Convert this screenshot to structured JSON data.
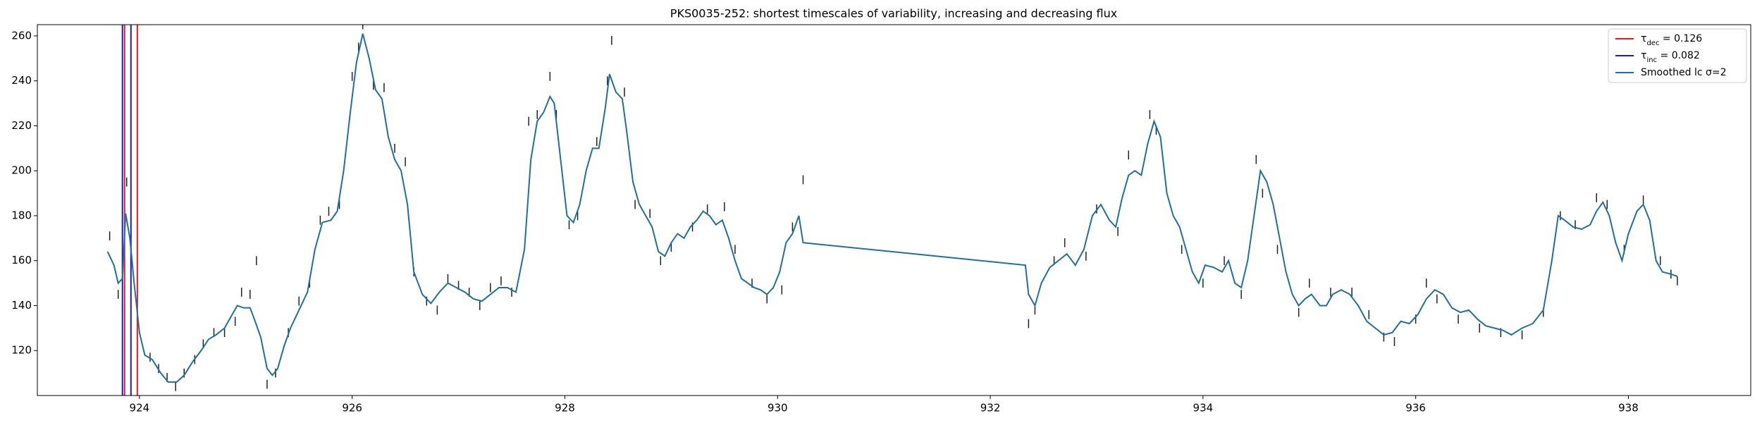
{
  "chart_data": {
    "type": "line",
    "title": "PKS0035-252: shortest timescales of variability, increasing and decreasing flux",
    "xlim": [
      923.04,
      939.15
    ],
    "ylim": [
      100,
      265
    ],
    "xticks": [
      924,
      926,
      928,
      930,
      932,
      934,
      936,
      938
    ],
    "yticks": [
      120,
      140,
      160,
      180,
      200,
      220,
      240,
      260
    ],
    "legend": "upper right",
    "series": [
      {
        "kind": "vline",
        "name_parts": [
          "τ",
          "dec",
          " = 0.126"
        ],
        "color": "#e41a1c",
        "x": [
          923.86,
          923.98
        ]
      },
      {
        "kind": "vline",
        "name_parts": [
          "τ",
          "inc",
          " = 0.082"
        ],
        "color": "#1a1adb",
        "x": [
          923.84,
          923.92
        ]
      },
      {
        "kind": "line",
        "name": "Smoothed lc σ=2",
        "color": "#1f6fa3",
        "x": [
          923.7,
          923.76,
          923.8,
          923.84,
          923.87,
          923.91,
          923.95,
          924.0,
          924.05,
          924.12,
          924.2,
          924.27,
          924.35,
          924.42,
          924.5,
          924.58,
          924.65,
          924.72,
          924.8,
          924.86,
          924.92,
          924.98,
          925.04,
          925.08,
          925.14,
          925.2,
          925.25,
          925.3,
          925.36,
          925.42,
          925.5,
          925.58,
          925.65,
          925.72,
          925.8,
          925.86,
          925.92,
          925.98,
          926.04,
          926.1,
          926.16,
          926.22,
          926.28,
          926.34,
          926.4,
          926.46,
          926.52,
          926.58,
          926.66,
          926.74,
          926.82,
          926.9,
          926.98,
          927.06,
          927.14,
          927.22,
          927.3,
          927.38,
          927.46,
          927.54,
          927.62,
          927.68,
          927.74,
          927.8,
          927.86,
          927.9,
          927.96,
          928.02,
          928.08,
          928.14,
          928.2,
          928.26,
          928.32,
          928.38,
          928.42,
          928.48,
          928.54,
          928.58,
          928.64,
          928.7,
          928.76,
          928.82,
          928.88,
          928.94,
          929.0,
          929.06,
          929.12,
          929.18,
          929.24,
          929.3,
          929.36,
          929.42,
          929.48,
          929.54,
          929.6,
          929.66,
          929.72,
          929.78,
          929.84,
          929.9,
          929.96,
          930.02,
          930.08,
          930.14,
          930.2,
          930.24,
          932.33,
          932.36,
          932.42,
          932.48,
          932.56,
          932.64,
          932.72,
          932.8,
          932.88,
          932.96,
          933.04,
          933.12,
          933.18,
          933.24,
          933.3,
          933.36,
          933.42,
          933.48,
          933.54,
          933.6,
          933.66,
          933.72,
          933.78,
          933.84,
          933.9,
          933.96,
          934.02,
          934.1,
          934.18,
          934.24,
          934.3,
          934.36,
          934.42,
          934.48,
          934.54,
          934.6,
          934.66,
          934.72,
          934.78,
          934.84,
          934.9,
          934.96,
          935.02,
          935.1,
          935.16,
          935.22,
          935.3,
          935.38,
          935.46,
          935.54,
          935.62,
          935.7,
          935.78,
          935.86,
          935.94,
          936.02,
          936.1,
          936.18,
          936.26,
          936.34,
          936.42,
          936.5,
          936.58,
          936.66,
          936.74,
          936.82,
          936.9,
          937.0,
          937.1,
          937.2,
          937.28,
          937.34,
          937.4,
          937.48,
          937.56,
          937.64,
          937.7,
          937.76,
          937.82,
          937.88,
          937.94,
          938.0,
          938.08,
          938.14,
          938.2,
          938.26,
          938.32,
          938.4,
          938.46
        ],
        "values": [
          164,
          158,
          150,
          152,
          181,
          170,
          150,
          128,
          118,
          116,
          110,
          106,
          106,
          109,
          115,
          120,
          125,
          127,
          130,
          135,
          140,
          139,
          139,
          134,
          126,
          112,
          109,
          112,
          122,
          130,
          138,
          146,
          165,
          177,
          178,
          182,
          200,
          225,
          248,
          261,
          250,
          236,
          232,
          215,
          205,
          200,
          185,
          155,
          145,
          141,
          146,
          150,
          148,
          146,
          143,
          142,
          145,
          148,
          148,
          146,
          165,
          205,
          222,
          226,
          233,
          230,
          205,
          180,
          177,
          185,
          200,
          210,
          210,
          228,
          243,
          235,
          232,
          218,
          195,
          185,
          180,
          175,
          164,
          162,
          168,
          172,
          170,
          175,
          178,
          182,
          180,
          176,
          178,
          170,
          160,
          152,
          150,
          148,
          147,
          145,
          148,
          155,
          168,
          172,
          180,
          168,
          158,
          145,
          140,
          150,
          157,
          160,
          163,
          158,
          165,
          180,
          185,
          178,
          175,
          188,
          198,
          200,
          198,
          212,
          222,
          215,
          190,
          180,
          175,
          165,
          155,
          150,
          158,
          157,
          155,
          160,
          150,
          148,
          160,
          180,
          200,
          195,
          185,
          170,
          155,
          145,
          140,
          143,
          145,
          140,
          140,
          145,
          147,
          145,
          140,
          133,
          130,
          127,
          128,
          133,
          132,
          136,
          143,
          147,
          145,
          139,
          137,
          138,
          134,
          131,
          130,
          129,
          127,
          130,
          132,
          138,
          160,
          180,
          178,
          175,
          174,
          176,
          182,
          186,
          180,
          168,
          160,
          172,
          182,
          185,
          178,
          160,
          155,
          154,
          153
        ]
      }
    ],
    "points": {
      "color": "#222222",
      "x": [
        923.72,
        923.8,
        923.84,
        923.88,
        923.92,
        924.1,
        924.18,
        924.26,
        924.34,
        924.42,
        924.52,
        924.6,
        924.7,
        924.8,
        924.9,
        924.96,
        925.04,
        925.1,
        925.2,
        925.28,
        925.4,
        925.5,
        925.6,
        925.7,
        925.78,
        925.88,
        926.0,
        926.06,
        926.1,
        926.2,
        926.3,
        926.4,
        926.5,
        926.58,
        926.7,
        926.8,
        926.9,
        927.0,
        927.1,
        927.2,
        927.3,
        927.4,
        927.5,
        927.66,
        927.74,
        927.86,
        927.92,
        928.04,
        928.12,
        928.3,
        928.4,
        928.44,
        928.56,
        928.66,
        928.8,
        928.9,
        929.0,
        929.2,
        929.34,
        929.5,
        929.6,
        929.76,
        929.9,
        930.04,
        930.14,
        930.24,
        932.36,
        932.42,
        932.6,
        932.7,
        932.9,
        933.0,
        933.2,
        933.3,
        933.5,
        933.56,
        933.8,
        934.0,
        934.2,
        934.36,
        934.5,
        934.56,
        934.7,
        934.9,
        935.0,
        935.2,
        935.4,
        935.56,
        935.7,
        935.8,
        936.0,
        936.1,
        936.2,
        936.4,
        936.6,
        936.8,
        937.0,
        937.2,
        937.36,
        937.5,
        937.7,
        937.8,
        937.96,
        938.14,
        938.3,
        938.4,
        938.46
      ],
      "values": [
        171,
        145,
        140,
        195,
        165,
        117,
        112,
        108,
        104,
        110,
        116,
        123,
        128,
        128,
        133,
        146,
        145,
        160,
        105,
        110,
        128,
        142,
        150,
        178,
        182,
        185,
        242,
        255,
        265,
        238,
        237,
        210,
        204,
        155,
        142,
        138,
        152,
        149,
        146,
        140,
        148,
        151,
        146,
        222,
        225,
        242,
        225,
        176,
        180,
        213,
        240,
        258,
        235,
        185,
        181,
        160,
        166,
        175,
        183,
        184,
        165,
        150,
        143,
        147,
        175,
        196,
        132,
        138,
        160,
        168,
        162,
        183,
        173,
        207,
        225,
        218,
        165,
        150,
        160,
        145,
        205,
        190,
        165,
        137,
        150,
        146,
        146,
        136,
        126,
        124,
        134,
        150,
        143,
        134,
        130,
        128,
        127,
        137,
        180,
        176,
        188,
        185,
        165,
        187,
        160,
        154,
        151
      ],
      "errors": [
        2,
        2,
        2,
        2,
        2,
        2,
        2,
        2,
        2,
        2,
        2,
        2,
        2,
        2,
        2,
        2,
        2,
        2,
        2,
        2,
        2,
        2,
        2,
        2,
        2,
        2,
        2,
        2,
        2,
        2,
        2,
        2,
        2,
        2,
        2,
        2,
        2,
        2,
        2,
        2,
        2,
        2,
        2,
        2,
        2,
        2,
        2,
        2,
        2,
        2,
        2,
        2,
        2,
        2,
        2,
        2,
        2,
        2,
        2,
        2,
        2,
        2,
        2,
        2,
        2,
        2,
        2,
        2,
        2,
        2,
        2,
        2,
        2,
        2,
        2,
        2,
        2,
        2,
        2,
        2,
        2,
        2,
        2,
        2,
        2,
        2,
        2,
        2,
        2,
        2,
        2,
        2,
        2,
        2,
        2,
        2,
        2,
        2,
        2,
        2,
        2,
        2,
        2,
        2,
        2,
        2,
        2
      ]
    }
  }
}
